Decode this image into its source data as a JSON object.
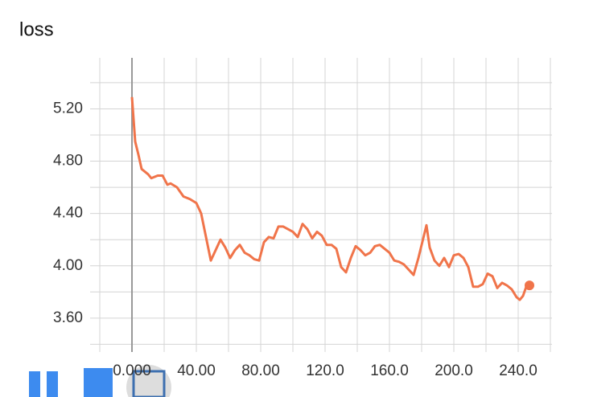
{
  "chart_data": {
    "type": "line",
    "title": "loss",
    "x": [
      0,
      2,
      4,
      6,
      10,
      12,
      16,
      19,
      22,
      24,
      28,
      32,
      36,
      40,
      43,
      46,
      49,
      52,
      55,
      58,
      61,
      64,
      67,
      70,
      73,
      76,
      79,
      82,
      85,
      88,
      91,
      94,
      97,
      100,
      103,
      106,
      109,
      112,
      115,
      118,
      121,
      124,
      127,
      130,
      133,
      136,
      139,
      142,
      145,
      148,
      151,
      154,
      157,
      160,
      163,
      166,
      169,
      172,
      175,
      178,
      181,
      183,
      185,
      188,
      191,
      194,
      197,
      200,
      203,
      206,
      209,
      212,
      215,
      218,
      221,
      224,
      227,
      230,
      233,
      236,
      239,
      241,
      243,
      245,
      247
    ],
    "series": [
      {
        "color": "#f0744a",
        "values": [
          5.29,
          4.95,
          4.85,
          4.74,
          4.7,
          4.67,
          4.69,
          4.69,
          4.62,
          4.63,
          4.6,
          4.53,
          4.51,
          4.48,
          4.4,
          4.22,
          4.04,
          4.12,
          4.2,
          4.14,
          4.06,
          4.12,
          4.16,
          4.1,
          4.08,
          4.05,
          4.04,
          4.18,
          4.22,
          4.21,
          4.3,
          4.3,
          4.28,
          4.26,
          4.22,
          4.32,
          4.28,
          4.21,
          4.26,
          4.23,
          4.16,
          4.16,
          4.13,
          3.99,
          3.95,
          4.06,
          4.15,
          4.12,
          4.08,
          4.1,
          4.15,
          4.16,
          4.13,
          4.1,
          4.04,
          4.03,
          4.01,
          3.97,
          3.93,
          4.06,
          4.21,
          4.31,
          4.14,
          4.04,
          4.0,
          4.06,
          3.99,
          4.08,
          4.09,
          4.06,
          3.99,
          3.84,
          3.84,
          3.86,
          3.94,
          3.92,
          3.83,
          3.87,
          3.85,
          3.82,
          3.76,
          3.74,
          3.77,
          3.84,
          3.85
        ]
      }
    ],
    "xlim": [
      -20,
      261
    ],
    "ylim": [
      3.39,
      5.59
    ],
    "xticks": [
      {
        "value": 0,
        "label": "0.000"
      },
      {
        "value": 40,
        "label": "40.00"
      },
      {
        "value": 80,
        "label": "80.00"
      },
      {
        "value": 120,
        "label": "120.0"
      },
      {
        "value": 160,
        "label": "160.0"
      },
      {
        "value": 200,
        "label": "200.0"
      },
      {
        "value": 240,
        "label": "240.0"
      }
    ],
    "xticks_minor": [
      -20,
      20,
      60,
      100,
      140,
      180,
      220,
      260
    ],
    "yticks": [
      {
        "value": 3.6,
        "label": "3.60"
      },
      {
        "value": 4.0,
        "label": "4.00"
      },
      {
        "value": 4.4,
        "label": "4.40"
      },
      {
        "value": 4.8,
        "label": "4.80"
      },
      {
        "value": 5.2,
        "label": "5.20"
      }
    ],
    "yticks_minor": [
      3.4,
      3.8,
      4.2,
      4.6,
      5.0,
      5.4
    ],
    "grid": true
  }
}
